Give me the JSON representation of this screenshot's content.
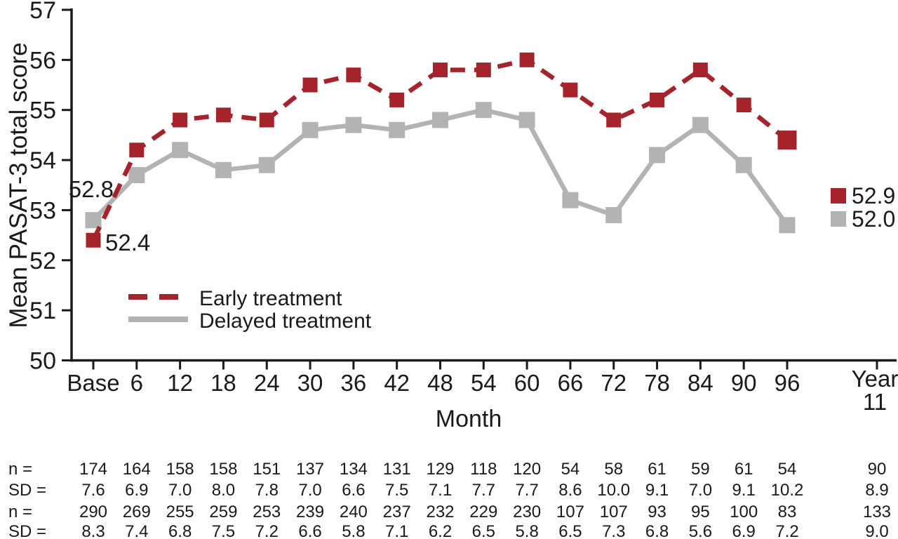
{
  "colors": {
    "early_red": "#a5242b",
    "delayed_gray": "#b3b3b3",
    "table_gray": "#969696",
    "table_red": "#a73036",
    "axis_black": "#1a1a1a"
  },
  "chart_data": {
    "type": "line",
    "title": "",
    "xlabel": "Month",
    "ylabel": "Mean PASAT-3 total score",
    "ylim": [
      50,
      57
    ],
    "yticks": [
      50,
      51,
      52,
      53,
      54,
      55,
      56,
      57
    ],
    "categories": [
      "Base",
      "6",
      "12",
      "18",
      "24",
      "30",
      "36",
      "42",
      "48",
      "54",
      "60",
      "66",
      "72",
      "78",
      "84",
      "90",
      "96"
    ],
    "extra_tick": {
      "line1": "Year",
      "line2": "11"
    },
    "grid": false,
    "legend_position": "inside lower-left",
    "series": [
      {
        "name": "Early treatment",
        "style": "dashed",
        "marker": "square",
        "color": "#a5242b",
        "values": [
          52.4,
          54.2,
          54.8,
          54.9,
          54.8,
          55.5,
          55.7,
          55.2,
          55.8,
          55.8,
          56.0,
          55.4,
          54.8,
          55.2,
          55.8,
          55.1,
          54.4
        ],
        "start_label": "52.4",
        "end_label": "52.9"
      },
      {
        "name": "Delayed treatment",
        "style": "solid",
        "marker": "square",
        "color": "#b3b3b3",
        "values": [
          52.8,
          53.7,
          54.2,
          53.8,
          53.9,
          54.6,
          54.7,
          54.6,
          54.8,
          55.0,
          54.8,
          53.2,
          52.9,
          54.1,
          54.7,
          53.9,
          52.7
        ],
        "start_label": "52.8",
        "end_label": "52.0"
      }
    ],
    "stats_table": {
      "rows": [
        {
          "label": "n =",
          "color": "gray",
          "values": [
            "174",
            "164",
            "158",
            "158",
            "151",
            "137",
            "134",
            "131",
            "129",
            "118",
            "120",
            "54",
            "58",
            "61",
            "59",
            "61",
            "54"
          ],
          "year11": "90"
        },
        {
          "label": "SD =",
          "color": "gray",
          "values": [
            "7.6",
            "6.9",
            "7.0",
            "8.0",
            "7.8",
            "7.0",
            "6.6",
            "7.5",
            "7.1",
            "7.7",
            "7.7",
            "8.6",
            "10.0",
            "9.1",
            "7.0",
            "9.1",
            "10.2"
          ],
          "year11": "8.9"
        },
        {
          "label": "n =",
          "color": "red",
          "values": [
            "290",
            "269",
            "255",
            "259",
            "253",
            "239",
            "240",
            "237",
            "232",
            "229",
            "230",
            "107",
            "107",
            "93",
            "95",
            "100",
            "83"
          ],
          "year11": "133"
        },
        {
          "label": "SD =",
          "color": "red",
          "values": [
            "8.3",
            "7.4",
            "6.8",
            "7.5",
            "7.2",
            "6.6",
            "5.8",
            "7.1",
            "6.2",
            "6.5",
            "5.8",
            "6.5",
            "7.3",
            "6.8",
            "5.6",
            "6.9",
            "7.2"
          ],
          "year11": "9.0"
        }
      ]
    }
  }
}
